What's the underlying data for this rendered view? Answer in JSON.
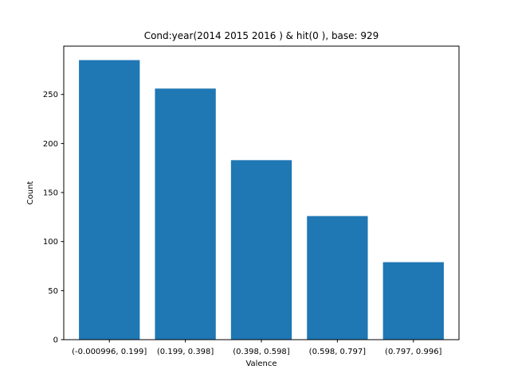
{
  "chart_data": {
    "type": "bar",
    "title": "Cond:year(2014 2015 2016 ) & hit(0 ), base: 929",
    "xlabel": "Valence",
    "ylabel": "Count",
    "categories": [
      "(-0.000996, 0.199]",
      "(0.199, 0.398]",
      "(0.398, 0.598]",
      "(0.598, 0.797]",
      "(0.797, 0.996]"
    ],
    "values": [
      285,
      256,
      183,
      126,
      79
    ],
    "ylim": [
      0,
      299.25
    ],
    "yticks": [
      0,
      50,
      100,
      150,
      200,
      250
    ],
    "grid": false,
    "bar_color": "#1f77b4"
  }
}
